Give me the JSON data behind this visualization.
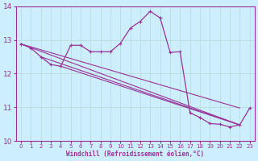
{
  "xlabel": "Windchill (Refroidissement éolien,°C)",
  "bg_color": "#cceeff",
  "line_color": "#993399",
  "grid_color": "#b8ddd8",
  "x_main": [
    0,
    1,
    2,
    3,
    4,
    5,
    6,
    7,
    8,
    9,
    10,
    11,
    12,
    13,
    14,
    15,
    16,
    17,
    18,
    19,
    20,
    21,
    22,
    23
  ],
  "y_main": [
    12.88,
    12.76,
    12.5,
    12.27,
    12.22,
    12.84,
    12.84,
    12.65,
    12.65,
    12.65,
    12.9,
    13.35,
    13.55,
    13.85,
    13.65,
    12.63,
    12.65,
    10.84,
    10.7,
    10.52,
    10.5,
    10.42,
    10.48,
    10.98
  ],
  "fan_lines": [
    [
      [
        0,
        22
      ],
      [
        12.88,
        10.98
      ]
    ],
    [
      [
        0,
        22
      ],
      [
        12.88,
        10.48
      ]
    ],
    [
      [
        2,
        22
      ],
      [
        12.5,
        10.48
      ]
    ],
    [
      [
        4,
        22
      ],
      [
        12.22,
        10.48
      ]
    ]
  ],
  "ylim": [
    10.0,
    14.0
  ],
  "xlim_min": -0.5,
  "xlim_max": 23.5,
  "yticks": [
    10,
    11,
    12,
    13,
    14
  ],
  "xticks": [
    0,
    1,
    2,
    3,
    4,
    5,
    6,
    7,
    8,
    9,
    10,
    11,
    12,
    13,
    14,
    15,
    16,
    17,
    18,
    19,
    20,
    21,
    22,
    23
  ]
}
